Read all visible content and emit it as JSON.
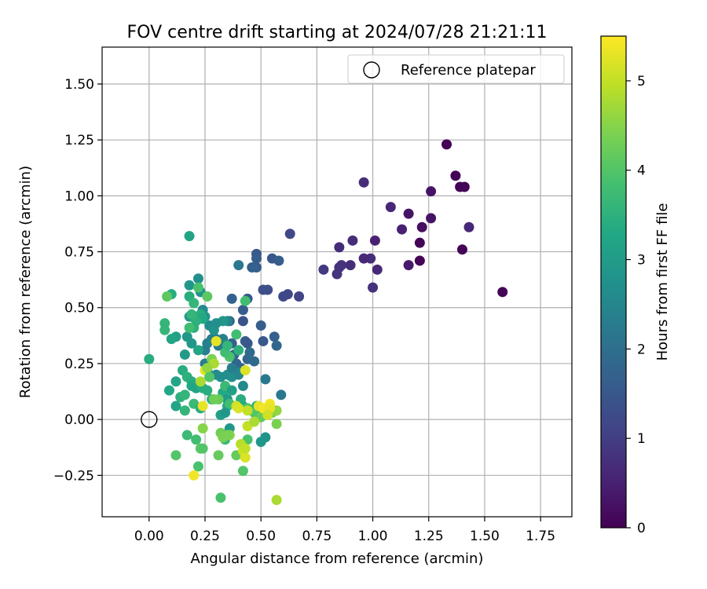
{
  "chart_data": {
    "type": "scatter",
    "title": "FOV centre drift starting at 2024/07/28 21:21:11",
    "xlabel": "Angular distance from reference (arcmin)",
    "ylabel": "Rotation from reference (arcmin)",
    "xlim": [
      -0.21,
      1.89
    ],
    "ylim": [
      -0.435,
      1.665
    ],
    "xticks": [
      0.0,
      0.25,
      0.5,
      0.75,
      1.0,
      1.25,
      1.5,
      1.75
    ],
    "xtick_labels": [
      "0.00",
      "0.25",
      "0.50",
      "0.75",
      "1.00",
      "1.25",
      "1.50",
      "1.75"
    ],
    "yticks": [
      -0.25,
      0.0,
      0.25,
      0.5,
      0.75,
      1.0,
      1.25,
      1.5
    ],
    "ytick_labels": [
      "−0.25",
      "0.00",
      "0.25",
      "0.50",
      "0.75",
      "1.00",
      "1.25",
      "1.50"
    ],
    "grid": true,
    "legend": {
      "position": "top-right",
      "entry": "Reference platepar"
    },
    "reference_point": [
      0.0,
      0.0
    ],
    "colorbar": {
      "label": "Hours from first FF file",
      "colormap": "viridis",
      "range": [
        0,
        5.5
      ],
      "ticks": [
        0,
        1,
        2,
        3,
        4,
        5
      ],
      "tick_labels": [
        "0",
        "1",
        "2",
        "3",
        "4",
        "5"
      ]
    },
    "points": [
      [
        1.33,
        1.23,
        0.05
      ],
      [
        1.37,
        1.09,
        0.05
      ],
      [
        1.39,
        1.04,
        0.05
      ],
      [
        1.41,
        1.04,
        0.05
      ],
      [
        1.4,
        0.76,
        0.05
      ],
      [
        1.58,
        0.57,
        0.05
      ],
      [
        1.21,
        0.79,
        0.05
      ],
      [
        1.21,
        0.71,
        0.05
      ],
      [
        1.22,
        0.86,
        0.2
      ],
      [
        1.26,
        0.9,
        0.3
      ],
      [
        1.26,
        1.02,
        0.3
      ],
      [
        1.16,
        0.92,
        0.3
      ],
      [
        1.16,
        0.69,
        0.4
      ],
      [
        1.13,
        0.85,
        0.5
      ],
      [
        1.08,
        0.95,
        0.6
      ],
      [
        1.01,
        0.8,
        0.5
      ],
      [
        1.02,
        0.67,
        0.6
      ],
      [
        0.99,
        0.72,
        0.7
      ],
      [
        0.96,
        0.72,
        0.6
      ],
      [
        1.0,
        0.59,
        0.8
      ],
      [
        0.96,
        1.06,
        0.7
      ],
      [
        0.91,
        0.8,
        0.7
      ],
      [
        0.9,
        0.69,
        0.7
      ],
      [
        0.85,
        0.68,
        0.8
      ],
      [
        0.86,
        0.69,
        0.8
      ],
      [
        0.84,
        0.65,
        0.8
      ],
      [
        0.85,
        0.77,
        0.7
      ],
      [
        0.78,
        0.67,
        0.9
      ],
      [
        1.43,
        0.86,
        0.6
      ],
      [
        0.63,
        0.83,
        1.2
      ],
      [
        0.67,
        0.55,
        1.1
      ],
      [
        0.62,
        0.56,
        1.2
      ],
      [
        0.6,
        0.55,
        1.2
      ],
      [
        0.53,
        0.58,
        1.3
      ],
      [
        0.51,
        0.58,
        1.3
      ],
      [
        0.55,
        0.72,
        1.5
      ],
      [
        0.58,
        0.71,
        1.6
      ],
      [
        0.48,
        0.74,
        1.5
      ],
      [
        0.48,
        0.72,
        1.6
      ],
      [
        0.48,
        0.68,
        1.6
      ],
      [
        0.46,
        0.68,
        1.7
      ],
      [
        0.44,
        0.54,
        1.5
      ],
      [
        0.5,
        0.42,
        1.6
      ],
      [
        0.51,
        0.35,
        1.5
      ],
      [
        0.56,
        0.37,
        1.7
      ],
      [
        0.57,
        0.33,
        1.8
      ],
      [
        0.42,
        0.49,
        1.6
      ],
      [
        0.42,
        0.44,
        1.4
      ],
      [
        0.43,
        0.35,
        1.6
      ],
      [
        0.44,
        0.34,
        1.5
      ],
      [
        0.37,
        0.54,
        1.7
      ],
      [
        0.36,
        0.44,
        1.8
      ],
      [
        0.37,
        0.34,
        1.7
      ],
      [
        0.38,
        0.29,
        1.8
      ],
      [
        0.39,
        0.25,
        1.8
      ],
      [
        0.41,
        0.23,
        1.8
      ],
      [
        0.44,
        0.27,
        1.8
      ],
      [
        0.47,
        0.26,
        1.9
      ],
      [
        0.45,
        0.3,
        1.9
      ],
      [
        0.52,
        0.18,
        2.2
      ],
      [
        0.59,
        0.11,
        2.2
      ],
      [
        0.4,
        0.69,
        2.2
      ],
      [
        0.35,
        0.44,
        2.5
      ],
      [
        0.33,
        0.36,
        2.4
      ],
      [
        0.31,
        0.33,
        2.3
      ],
      [
        0.3,
        0.36,
        2.3
      ],
      [
        0.28,
        0.36,
        2.3
      ],
      [
        0.26,
        0.34,
        2.4
      ],
      [
        0.25,
        0.31,
        2.3
      ],
      [
        0.25,
        0.25,
        2.3
      ],
      [
        0.26,
        0.22,
        2.4
      ],
      [
        0.27,
        0.19,
        2.5
      ],
      [
        0.3,
        0.2,
        2.6
      ],
      [
        0.32,
        0.19,
        2.7
      ],
      [
        0.35,
        0.2,
        2.7
      ],
      [
        0.37,
        0.19,
        2.7
      ],
      [
        0.4,
        0.21,
        2.6
      ],
      [
        0.4,
        0.2,
        2.5
      ],
      [
        0.42,
        0.15,
        2.6
      ],
      [
        0.37,
        0.23,
        2.3
      ],
      [
        0.22,
        0.63,
        2.7
      ],
      [
        0.23,
        0.57,
        2.8
      ],
      [
        0.18,
        0.6,
        2.9
      ],
      [
        0.24,
        0.49,
        2.6
      ],
      [
        0.25,
        0.46,
        2.8
      ],
      [
        0.27,
        0.42,
        2.6
      ],
      [
        0.29,
        0.4,
        2.8
      ],
      [
        0.33,
        0.44,
        2.9
      ],
      [
        0.3,
        0.43,
        2.7
      ],
      [
        0.19,
        0.34,
        2.9
      ],
      [
        0.17,
        0.37,
        2.9
      ],
      [
        0.18,
        0.46,
        3.0
      ],
      [
        0.22,
        0.31,
        3.2
      ],
      [
        0.16,
        0.29,
        3.0
      ],
      [
        0.12,
        0.37,
        3.1
      ],
      [
        0.1,
        0.36,
        3.2
      ],
      [
        0.1,
        0.56,
        3.4
      ],
      [
        0.18,
        0.82,
        3.2
      ],
      [
        0.18,
        0.55,
        3.4
      ],
      [
        0.2,
        0.52,
        3.6
      ],
      [
        0.22,
        0.59,
        3.9
      ],
      [
        0.26,
        0.55,
        4.1
      ],
      [
        0.43,
        0.53,
        3.8
      ],
      [
        0.39,
        0.38,
        3.8
      ],
      [
        0.36,
        0.28,
        3.9
      ],
      [
        0.34,
        0.3,
        3.8
      ],
      [
        0.4,
        0.31,
        3.5
      ],
      [
        0.35,
        0.33,
        3.6
      ],
      [
        0.23,
        0.47,
        3.4
      ],
      [
        0.24,
        0.45,
        3.3
      ],
      [
        0.21,
        0.44,
        3.5
      ],
      [
        0.19,
        0.47,
        3.6
      ],
      [
        0.2,
        0.41,
        3.5
      ],
      [
        0.18,
        0.41,
        3.8
      ],
      [
        0.07,
        0.43,
        3.6
      ],
      [
        0.07,
        0.4,
        3.6
      ],
      [
        0.08,
        0.55,
        4.1
      ],
      [
        0.0,
        0.27,
        3.4
      ],
      [
        0.09,
        0.13,
        3.3
      ],
      [
        0.12,
        0.06,
        3.2
      ],
      [
        0.12,
        0.17,
        3.2
      ],
      [
        0.15,
        0.22,
        3.4
      ],
      [
        0.17,
        0.19,
        3.5
      ],
      [
        0.19,
        0.17,
        3.4
      ],
      [
        0.19,
        0.15,
        3.3
      ],
      [
        0.21,
        0.14,
        3.2
      ],
      [
        0.14,
        0.1,
        3.5
      ],
      [
        0.16,
        0.04,
        3.6
      ],
      [
        0.16,
        0.11,
        3.6
      ],
      [
        0.2,
        0.07,
        3.7
      ],
      [
        0.23,
        0.05,
        3.4
      ],
      [
        0.23,
        0.15,
        3.3
      ],
      [
        0.24,
        0.14,
        3.4
      ],
      [
        0.26,
        0.13,
        3.4
      ],
      [
        0.28,
        0.09,
        3.5
      ],
      [
        0.33,
        0.12,
        3.3
      ],
      [
        0.35,
        0.06,
        3.3
      ],
      [
        0.34,
        0.15,
        3.7
      ],
      [
        0.32,
        0.02,
        3.1
      ],
      [
        0.34,
        0.03,
        2.9
      ],
      [
        0.35,
        0.09,
        3.0
      ],
      [
        0.37,
        0.13,
        3.1
      ],
      [
        0.41,
        0.06,
        3.2
      ],
      [
        0.42,
        0.06,
        3.3
      ],
      [
        0.41,
        0.09,
        3.4
      ],
      [
        0.48,
        0.06,
        3.5
      ],
      [
        0.48,
        0.04,
        3.6
      ],
      [
        0.51,
        0.05,
        3.5
      ],
      [
        0.53,
        0.04,
        3.7
      ],
      [
        0.36,
        0.07,
        3.8
      ],
      [
        0.34,
        -0.09,
        3.7
      ],
      [
        0.36,
        -0.04,
        2.9
      ],
      [
        0.44,
        0.05,
        3.9
      ],
      [
        0.47,
        0.03,
        4.0
      ],
      [
        0.5,
        0.01,
        4.2
      ],
      [
        0.55,
        0.03,
        4.3
      ],
      [
        0.57,
        0.04,
        4.6
      ],
      [
        0.57,
        -0.02,
        4.4
      ],
      [
        0.52,
        -0.08,
        2.8
      ],
      [
        0.5,
        -0.1,
        2.9
      ],
      [
        0.44,
        -0.09,
        3.9
      ],
      [
        0.42,
        -0.23,
        4.0
      ],
      [
        0.39,
        -0.16,
        4.2
      ],
      [
        0.36,
        -0.07,
        4.5
      ],
      [
        0.35,
        -0.07,
        4.4
      ],
      [
        0.32,
        -0.06,
        4.3
      ],
      [
        0.33,
        -0.08,
        4.4
      ],
      [
        0.31,
        -0.16,
        4.2
      ],
      [
        0.31,
        0.09,
        4.2
      ],
      [
        0.29,
        0.09,
        4.3
      ],
      [
        0.28,
        0.27,
        4.4
      ],
      [
        0.29,
        0.25,
        4.8
      ],
      [
        0.3,
        0.35,
        5.3
      ],
      [
        0.25,
        0.22,
        5.3
      ],
      [
        0.24,
        0.06,
        5.3
      ],
      [
        0.23,
        0.17,
        4.8
      ],
      [
        0.26,
        0.23,
        4.6
      ],
      [
        0.27,
        0.19,
        4.0
      ],
      [
        0.24,
        -0.04,
        4.5
      ],
      [
        0.23,
        -0.13,
        4.1
      ],
      [
        0.22,
        -0.21,
        3.9
      ],
      [
        0.24,
        -0.13,
        4.0
      ],
      [
        0.21,
        -0.09,
        3.8
      ],
      [
        0.17,
        -0.07,
        3.7
      ],
      [
        0.12,
        -0.16,
        4.0
      ],
      [
        0.2,
        -0.25,
        5.4
      ],
      [
        0.32,
        -0.35,
        3.9
      ],
      [
        0.57,
        -0.36,
        4.8
      ],
      [
        0.41,
        -0.11,
        4.9
      ],
      [
        0.42,
        -0.14,
        5.1
      ],
      [
        0.43,
        -0.17,
        5.2
      ],
      [
        0.43,
        -0.13,
        5.0
      ],
      [
        0.44,
        -0.03,
        5.0
      ],
      [
        0.47,
        -0.01,
        4.8
      ],
      [
        0.39,
        0.06,
        5.1
      ],
      [
        0.4,
        0.05,
        5.2
      ],
      [
        0.49,
        0.06,
        5.3
      ],
      [
        0.51,
        0.05,
        5.4
      ],
      [
        0.54,
        0.07,
        5.4
      ],
      [
        0.54,
        0.05,
        5.3
      ],
      [
        0.53,
        0.02,
        5.1
      ],
      [
        0.44,
        0.04,
        5.0
      ],
      [
        0.43,
        0.22,
        5.2
      ]
    ]
  }
}
